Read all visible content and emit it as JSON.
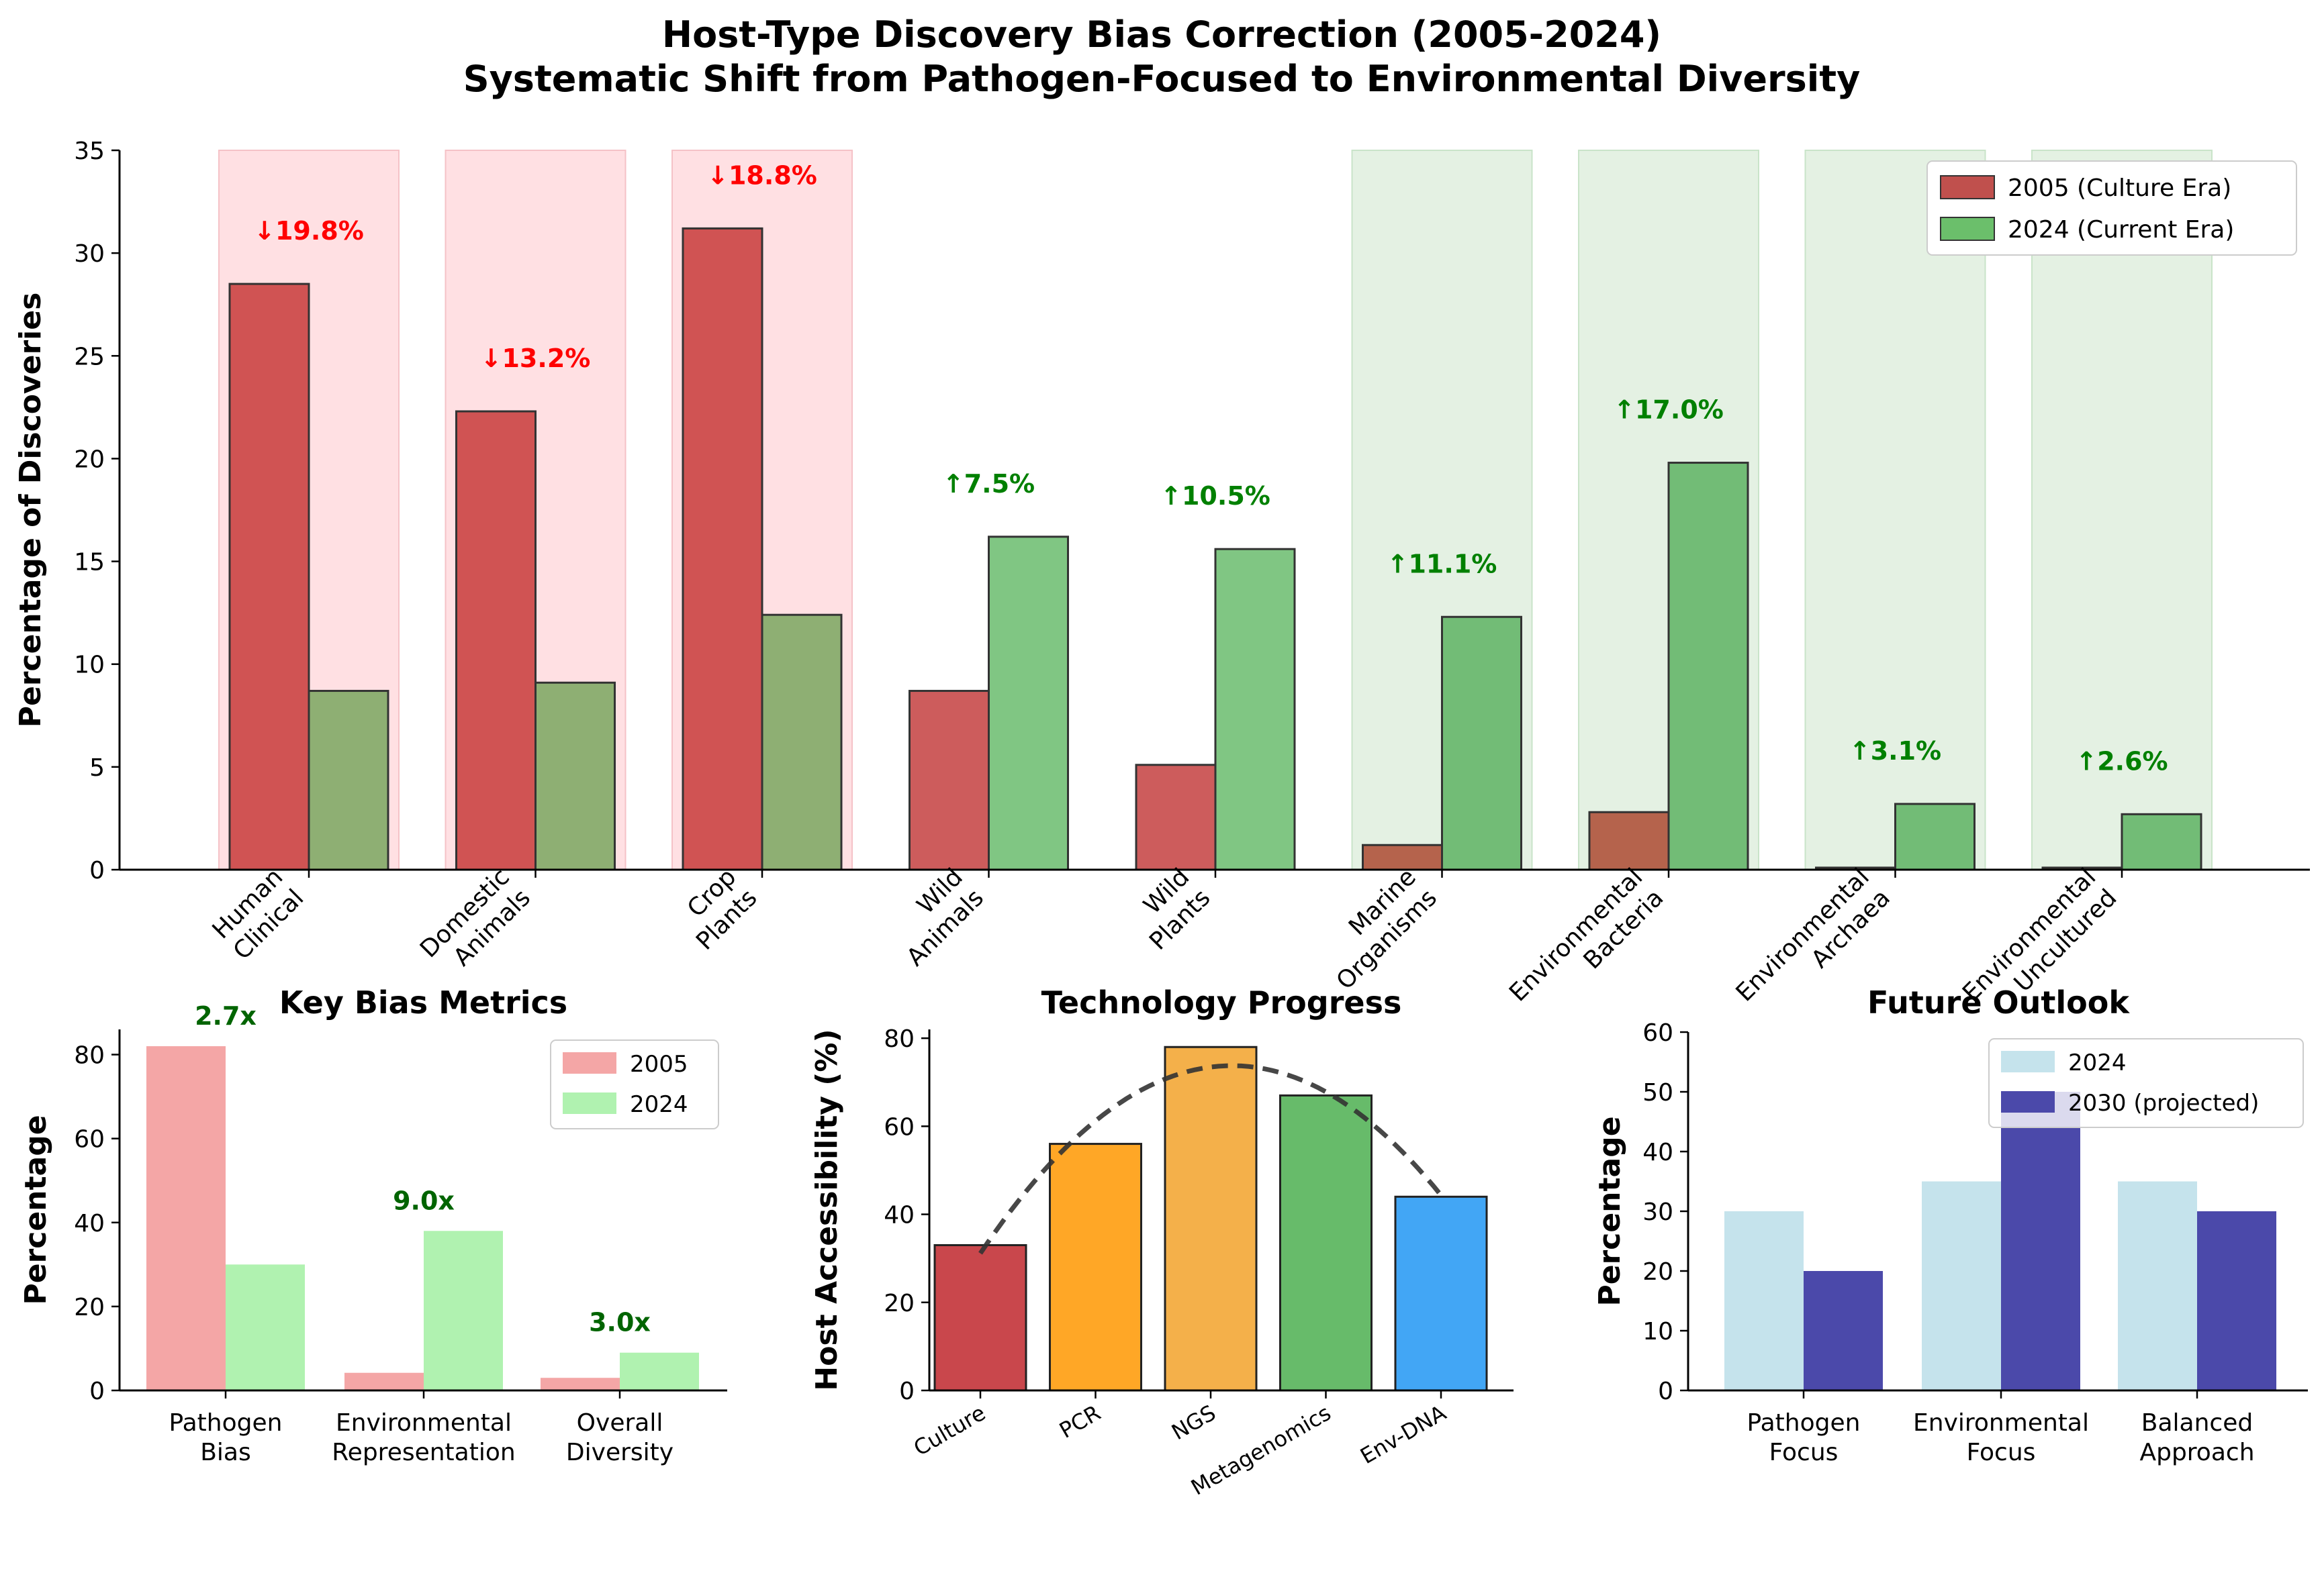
{
  "figure": {
    "title_line1": "Host-Type Discovery Bias Correction (2005-2024)",
    "title_line2": "Systematic Shift from Pathogen-Focused to Environmental Diversity"
  },
  "chart_data": [
    {
      "type": "bar",
      "ylabel": "Percentage of Discoveries",
      "ylim": [
        0,
        35
      ],
      "yticks": [
        0,
        5,
        10,
        15,
        20,
        25,
        30,
        35
      ],
      "categories": [
        "Human\nClinical",
        "Domestic\nAnimals",
        "Crop\nPlants",
        "Wild\nAnimals",
        "Wild\nPlants",
        "Marine\nOrganisms",
        "Environmental\nBacteria",
        "Environmental\nArchaea",
        "Environmental\nUncultured"
      ],
      "series": [
        {
          "name": "2005 (Culture Era)",
          "values": [
            28.5,
            22.3,
            31.2,
            8.7,
            5.1,
            1.2,
            2.8,
            0.1,
            0.1
          ],
          "color": "#c0272d"
        },
        {
          "name": "2024 (Current Era)",
          "values": [
            8.7,
            9.1,
            12.4,
            16.2,
            15.6,
            12.3,
            19.8,
            3.2,
            2.7
          ],
          "color": "#4caf50"
        }
      ],
      "change_labels": [
        "↓19.8%",
        "↓13.2%",
        "↓18.8%",
        "↑7.5%",
        "↑10.5%",
        "↑11.1%",
        "↑17.0%",
        "↑3.1%",
        "↑2.6%"
      ],
      "change_directions": [
        "down",
        "down",
        "down",
        "up",
        "up",
        "up",
        "up",
        "up",
        "up"
      ],
      "shaded_background": [
        "red",
        "red",
        "red",
        "none",
        "none",
        "green",
        "green",
        "green",
        "green"
      ],
      "legend": "top-right"
    },
    {
      "type": "bar",
      "title": "Key Bias Metrics",
      "ylabel": "Percentage",
      "ylim": [
        0,
        86
      ],
      "yticks": [
        0,
        20,
        40,
        60,
        80
      ],
      "categories": [
        "Pathogen\nBias",
        "Environmental\nRepresentation",
        "Overall\nDiversity"
      ],
      "series": [
        {
          "name": "2005",
          "values": [
            82,
            4.2,
            3
          ],
          "color": "#f4a6a6"
        },
        {
          "name": "2024",
          "values": [
            30,
            38,
            9
          ],
          "color": "#b0f2b0"
        }
      ],
      "ratio_labels": [
        "2.7x",
        "9.0x",
        "3.0x"
      ],
      "legend": "top-right"
    },
    {
      "type": "bar",
      "title": "Technology Progress",
      "ylabel": "Host Accessibility (%)",
      "ylim": [
        0,
        82
      ],
      "yticks": [
        0,
        20,
        40,
        60,
        80
      ],
      "categories": [
        "Culture",
        "PCR",
        "NGS",
        "Metagenomics",
        "Env-DNA"
      ],
      "values": [
        33,
        56,
        78,
        67,
        44
      ],
      "colors": [
        "#c0272d",
        "#ff9800",
        "#f2a22a",
        "#4caf50",
        "#2196f3"
      ],
      "trend": "quadratic fit (dashed)"
    },
    {
      "type": "bar",
      "title": "Future Outlook",
      "ylabel": "Percentage",
      "ylim": [
        0,
        60
      ],
      "yticks": [
        0,
        10,
        20,
        30,
        40,
        50,
        60
      ],
      "categories": [
        "Pathogen\nFocus",
        "Environmental\nFocus",
        "Balanced\nApproach"
      ],
      "series": [
        {
          "name": "2024",
          "values": [
            30,
            35,
            35
          ],
          "color": "#c5e3ec"
        },
        {
          "name": "2030 (projected)",
          "values": [
            20,
            50,
            30
          ],
          "color": "#4b49aa"
        }
      ],
      "legend": "top-right"
    }
  ]
}
